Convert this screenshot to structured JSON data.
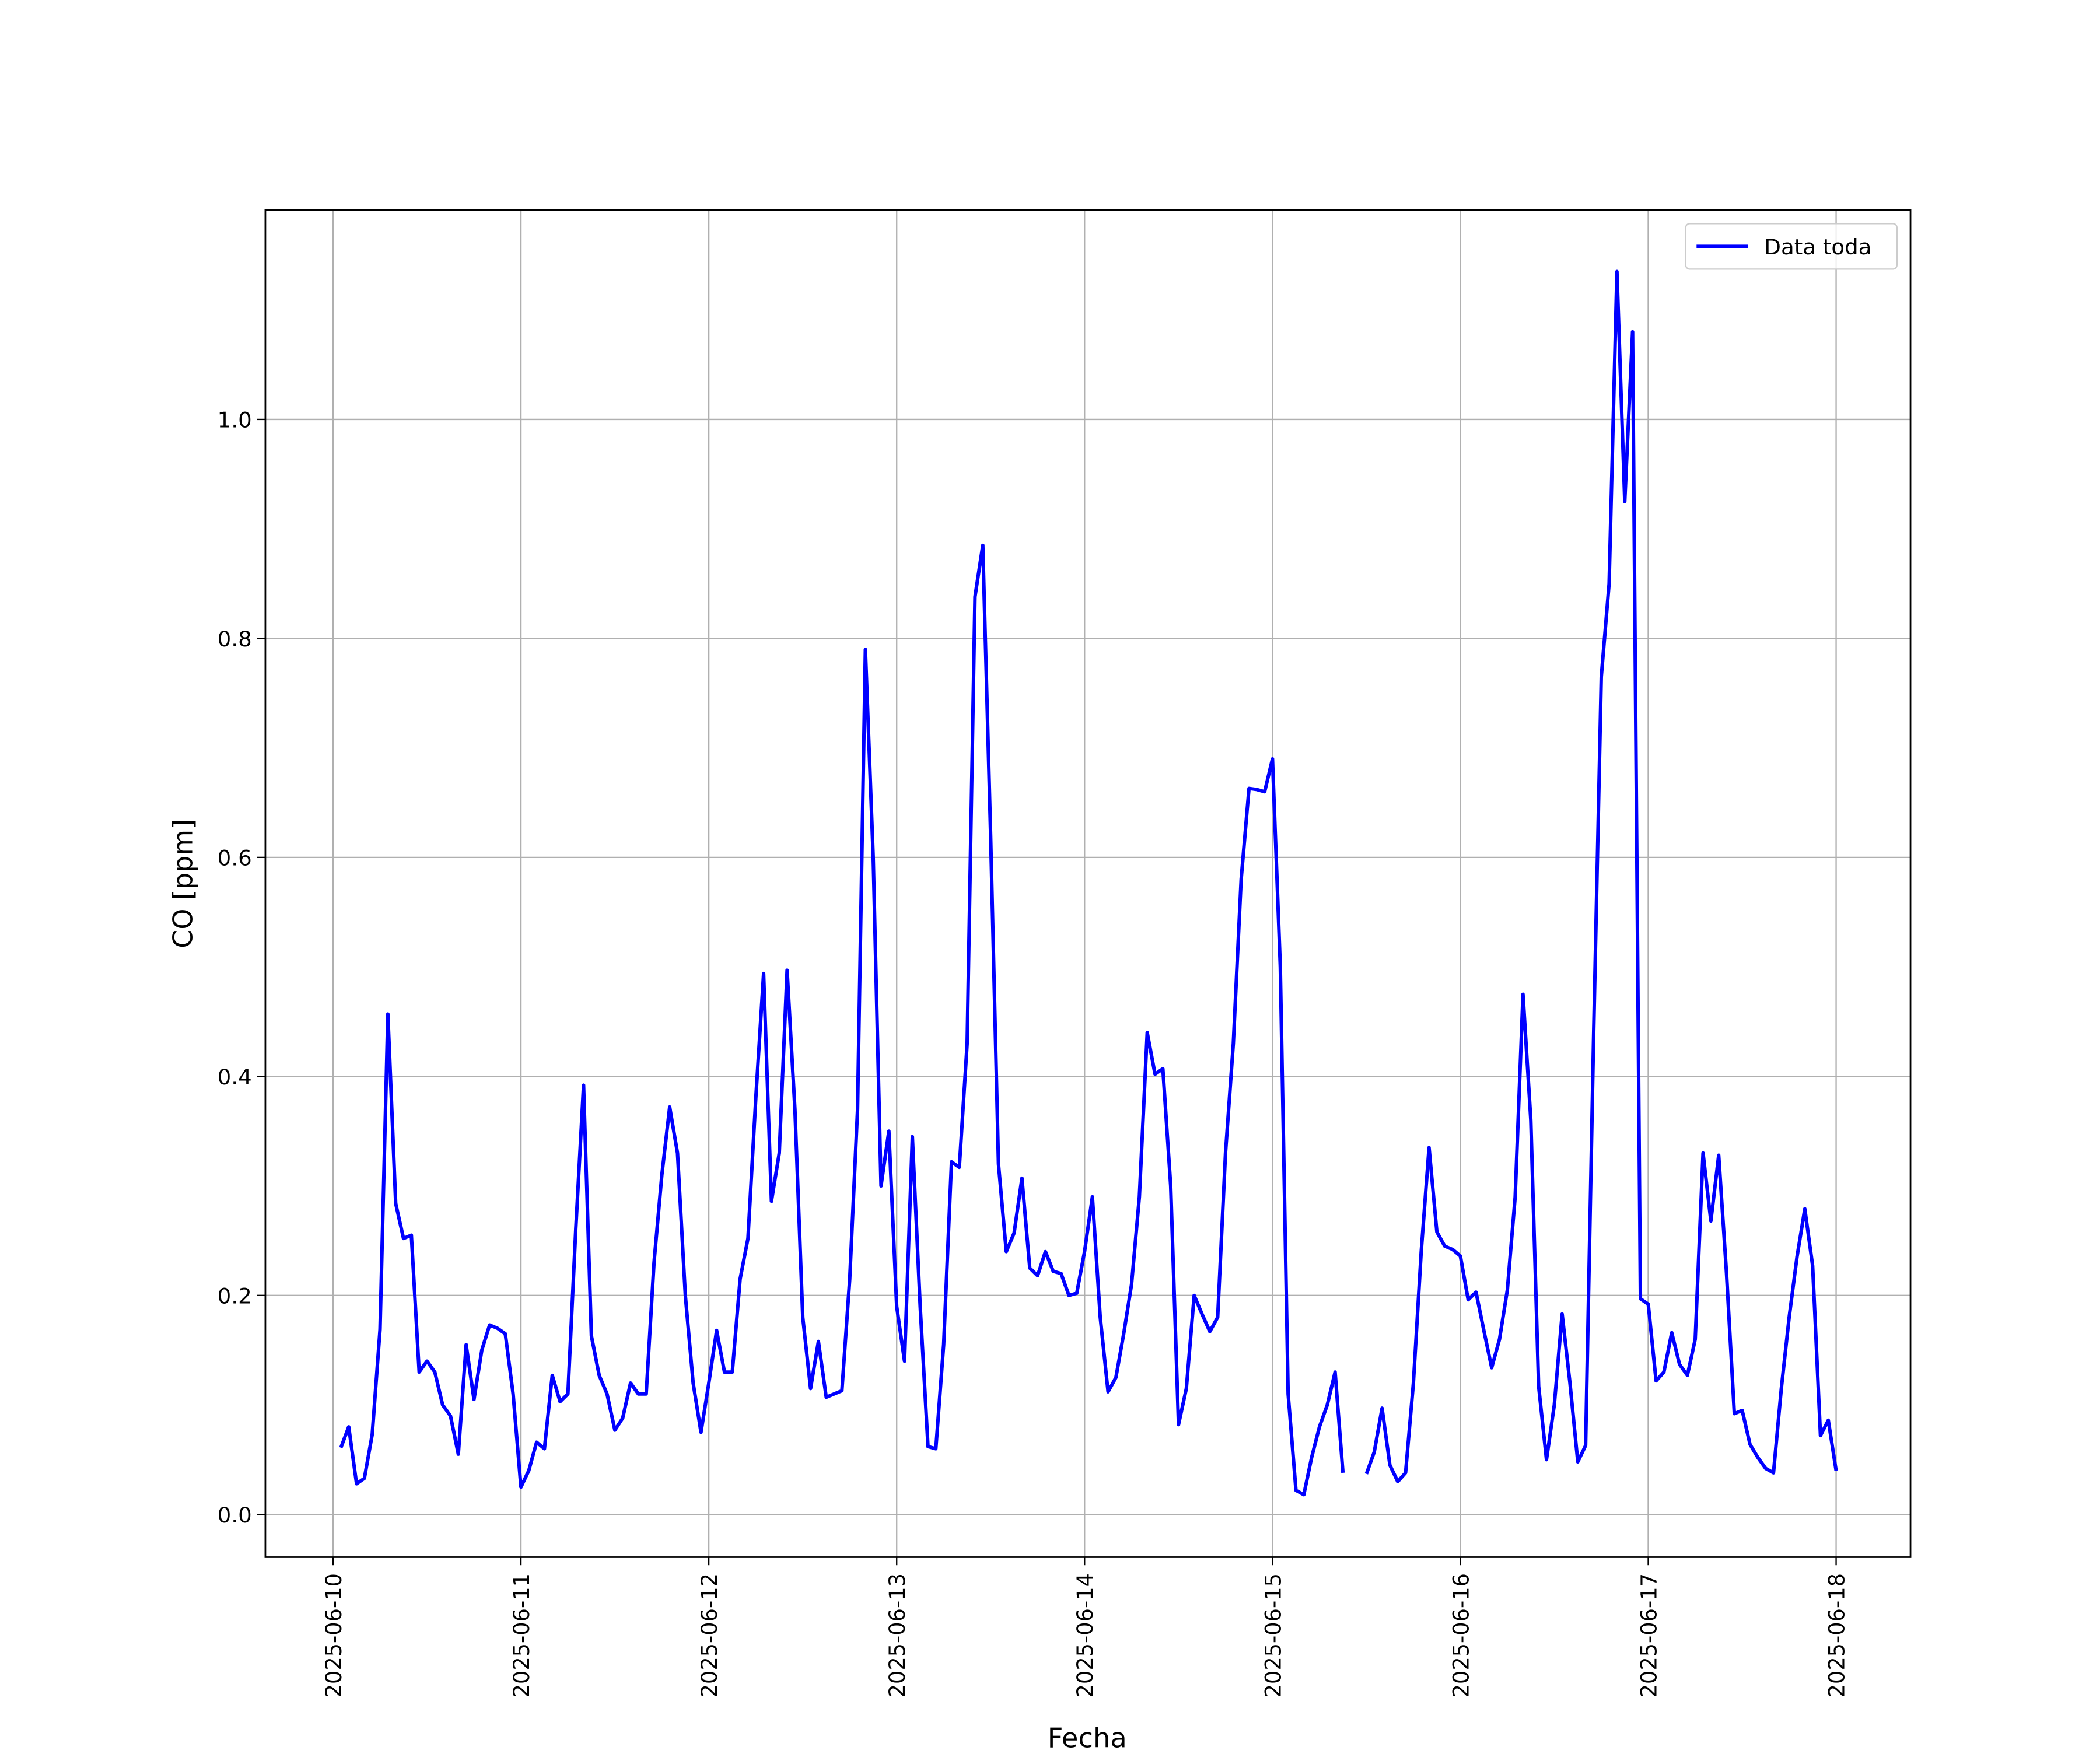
{
  "chart_data": {
    "type": "line",
    "xlabel": "Fecha",
    "ylabel": "CO [ppm]",
    "xlim": [
      "2025-06-09T15:21",
      "2025-06-18T09:30"
    ],
    "xticks": [
      "2025-06-10",
      "2025-06-11",
      "2025-06-12",
      "2025-06-13",
      "2025-06-14",
      "2025-06-15",
      "2025-06-16",
      "2025-06-17",
      "2025-06-18"
    ],
    "ylim": [
      -0.039,
      1.191
    ],
    "yticks": [
      {
        "value": 0,
        "label": "0.0"
      },
      {
        "value": 0.2,
        "label": "0.2"
      },
      {
        "value": 0.4,
        "label": "0.4"
      },
      {
        "value": 0.6,
        "label": "0.6"
      },
      {
        "value": 0.8,
        "label": "0.8"
      },
      {
        "value": 1,
        "label": "1.0"
      }
    ],
    "grid": true,
    "legend": "upper right",
    "x": [
      "2025-06-10T01:00",
      "2025-06-10T02:00",
      "2025-06-10T03:00",
      "2025-06-10T04:00",
      "2025-06-10T05:00",
      "2025-06-10T06:00",
      "2025-06-10T07:00",
      "2025-06-10T08:00",
      "2025-06-10T09:00",
      "2025-06-10T10:00",
      "2025-06-10T11:00",
      "2025-06-10T12:00",
      "2025-06-10T13:00",
      "2025-06-10T14:00",
      "2025-06-10T15:00",
      "2025-06-10T16:00",
      "2025-06-10T17:00",
      "2025-06-10T18:00",
      "2025-06-10T19:00",
      "2025-06-10T20:00",
      "2025-06-10T21:00",
      "2025-06-10T22:00",
      "2025-06-10T23:00",
      "2025-06-11T00:00",
      "2025-06-11T01:00",
      "2025-06-11T02:00",
      "2025-06-11T03:00",
      "2025-06-11T04:00",
      "2025-06-11T05:00",
      "2025-06-11T06:00",
      "2025-06-11T07:00",
      "2025-06-11T08:00",
      "2025-06-11T09:00",
      "2025-06-11T10:00",
      "2025-06-11T11:00",
      "2025-06-11T12:00",
      "2025-06-11T13:00",
      "2025-06-11T14:00",
      "2025-06-11T15:00",
      "2025-06-11T16:00",
      "2025-06-11T17:00",
      "2025-06-11T18:00",
      "2025-06-11T19:00",
      "2025-06-11T20:00",
      "2025-06-11T21:00",
      "2025-06-11T22:00",
      "2025-06-11T23:00",
      "2025-06-12T00:00",
      "2025-06-12T01:00",
      "2025-06-12T02:00",
      "2025-06-12T03:00",
      "2025-06-12T04:00",
      "2025-06-12T05:00",
      "2025-06-12T06:00",
      "2025-06-12T07:00",
      "2025-06-12T08:00",
      "2025-06-12T09:00",
      "2025-06-12T10:00",
      "2025-06-12T11:00",
      "2025-06-12T12:00",
      "2025-06-12T13:00",
      "2025-06-12T14:00",
      "2025-06-12T15:00",
      "2025-06-12T16:00",
      "2025-06-12T17:00",
      "2025-06-12T18:00",
      "2025-06-12T19:00",
      "2025-06-12T20:00",
      "2025-06-12T21:00",
      "2025-06-12T22:00",
      "2025-06-12T23:00",
      "2025-06-13T00:00",
      "2025-06-13T01:00",
      "2025-06-13T02:00",
      "2025-06-13T03:00",
      "2025-06-13T04:00",
      "2025-06-13T05:00",
      "2025-06-13T06:00",
      "2025-06-13T07:00",
      "2025-06-13T08:00",
      "2025-06-13T09:00",
      "2025-06-13T10:00",
      "2025-06-13T11:00",
      "2025-06-13T12:00",
      "2025-06-13T13:00",
      "2025-06-13T14:00",
      "2025-06-13T15:00",
      "2025-06-13T16:00",
      "2025-06-13T17:00",
      "2025-06-13T18:00",
      "2025-06-13T19:00",
      "2025-06-13T20:00",
      "2025-06-13T21:00",
      "2025-06-13T22:00",
      "2025-06-13T23:00",
      "2025-06-14T00:00",
      "2025-06-14T01:00",
      "2025-06-14T02:00",
      "2025-06-14T03:00",
      "2025-06-14T04:00",
      "2025-06-14T05:00",
      "2025-06-14T06:00",
      "2025-06-14T07:00",
      "2025-06-14T08:00",
      "2025-06-14T09:00",
      "2025-06-14T10:00",
      "2025-06-14T11:00",
      "2025-06-14T12:00",
      "2025-06-14T13:00",
      "2025-06-14T14:00",
      "2025-06-14T15:00",
      "2025-06-14T16:00",
      "2025-06-14T17:00",
      "2025-06-14T18:00",
      "2025-06-14T19:00",
      "2025-06-14T20:00",
      "2025-06-14T21:00",
      "2025-06-14T22:00",
      "2025-06-14T23:00",
      "2025-06-15T00:00",
      "2025-06-15T01:00",
      "2025-06-15T02:00",
      "2025-06-15T03:00",
      "2025-06-15T04:00",
      "2025-06-15T05:00",
      "2025-06-15T06:00",
      "2025-06-15T07:00",
      "2025-06-15T08:00",
      "2025-06-15T09:00",
      "2025-06-15T10:00",
      "2025-06-15T11:00",
      "2025-06-15T12:00",
      "2025-06-15T13:00",
      "2025-06-15T14:00",
      "2025-06-15T15:00",
      "2025-06-15T16:00",
      "2025-06-15T17:00",
      "2025-06-15T18:00",
      "2025-06-15T19:00",
      "2025-06-15T20:00",
      "2025-06-15T21:00",
      "2025-06-15T22:00",
      "2025-06-15T23:00",
      "2025-06-16T00:00",
      "2025-06-16T01:00",
      "2025-06-16T02:00",
      "2025-06-16T03:00",
      "2025-06-16T04:00",
      "2025-06-16T05:00",
      "2025-06-16T06:00",
      "2025-06-16T07:00",
      "2025-06-16T08:00",
      "2025-06-16T09:00",
      "2025-06-16T10:00",
      "2025-06-16T11:00",
      "2025-06-16T12:00",
      "2025-06-16T13:00",
      "2025-06-16T14:00",
      "2025-06-16T15:00",
      "2025-06-16T16:00",
      "2025-06-16T17:00",
      "2025-06-16T18:00",
      "2025-06-16T19:00",
      "2025-06-16T20:00",
      "2025-06-16T21:00",
      "2025-06-16T22:00",
      "2025-06-16T23:00",
      "2025-06-17T00:00",
      "2025-06-17T01:00",
      "2025-06-17T02:00",
      "2025-06-17T03:00",
      "2025-06-17T04:00",
      "2025-06-17T05:00",
      "2025-06-17T06:00",
      "2025-06-17T07:00",
      "2025-06-17T08:00",
      "2025-06-17T09:00",
      "2025-06-17T10:00",
      "2025-06-17T11:00",
      "2025-06-17T12:00",
      "2025-06-17T13:00",
      "2025-06-17T14:00",
      "2025-06-17T15:00",
      "2025-06-17T16:00",
      "2025-06-17T17:00",
      "2025-06-17T18:00",
      "2025-06-17T19:00",
      "2025-06-17T20:00",
      "2025-06-17T21:00",
      "2025-06-17T22:00",
      "2025-06-17T23:00",
      "2025-06-18T00:00"
    ],
    "series": [
      {
        "name": "Data toda",
        "color": "#0000ff",
        "values": [
          0.061,
          0.08,
          0.028,
          0.033,
          0.073,
          0.169,
          0.457,
          0.284,
          0.252,
          0.255,
          0.13,
          0.14,
          0.13,
          0.1,
          0.09,
          0.055,
          0.155,
          0.105,
          0.15,
          0.173,
          0.17,
          0.165,
          0.11,
          0.025,
          0.04,
          0.066,
          0.06,
          0.127,
          0.103,
          0.11,
          0.26,
          0.392,
          0.163,
          0.127,
          0.11,
          0.077,
          0.088,
          0.12,
          0.11,
          0.11,
          0.23,
          0.31,
          0.372,
          0.33,
          0.2,
          0.12,
          0.075,
          0.12,
          0.168,
          0.13,
          0.13,
          0.215,
          0.252,
          0.38,
          0.494,
          0.286,
          0.33,
          0.497,
          0.37,
          0.18,
          0.115,
          0.158,
          0.107,
          0.11,
          0.113,
          0.215,
          0.37,
          0.79,
          0.6,
          0.3,
          0.35,
          0.19,
          0.14,
          0.345,
          0.19,
          0.062,
          0.06,
          0.155,
          0.322,
          0.317,
          0.43,
          0.838,
          0.885,
          0.62,
          0.32,
          0.24,
          0.257,
          0.307,
          0.225,
          0.218,
          0.24,
          0.222,
          0.22,
          0.2,
          0.202,
          0.24,
          0.29,
          0.18,
          0.112,
          0.125,
          0.165,
          0.21,
          0.29,
          0.44,
          0.402,
          0.407,
          0.3,
          0.082,
          0.115,
          0.2,
          0.183,
          0.167,
          0.18,
          0.33,
          0.43,
          0.58,
          0.663,
          0.662,
          0.66,
          0.69,
          0.5,
          0.11,
          0.022,
          0.018,
          0.052,
          0.08,
          0.1,
          0.13,
          0.038,
          null,
          null,
          0.037,
          0.057,
          0.097,
          0.045,
          0.03,
          0.038,
          0.12,
          0.24,
          0.335,
          0.258,
          0.245,
          0.242,
          0.236,
          0.196,
          0.203,
          0.168,
          0.134,
          0.16,
          0.205,
          0.29,
          0.475,
          0.36,
          0.117,
          0.05,
          0.1,
          0.183,
          0.12,
          0.048,
          0.063,
          0.43,
          0.765,
          0.85,
          1.135,
          0.925,
          1.08,
          0.197,
          0.192,
          0.122,
          0.13,
          0.166,
          0.137,
          0.127,
          0.16,
          0.33,
          0.268,
          0.328,
          0.22,
          0.092,
          0.095,
          0.064,
          0.052,
          0.042,
          0.038,
          0.115,
          0.18,
          0.235,
          0.279,
          0.227,
          0.072,
          0.086,
          0.04
        ]
      }
    ]
  }
}
